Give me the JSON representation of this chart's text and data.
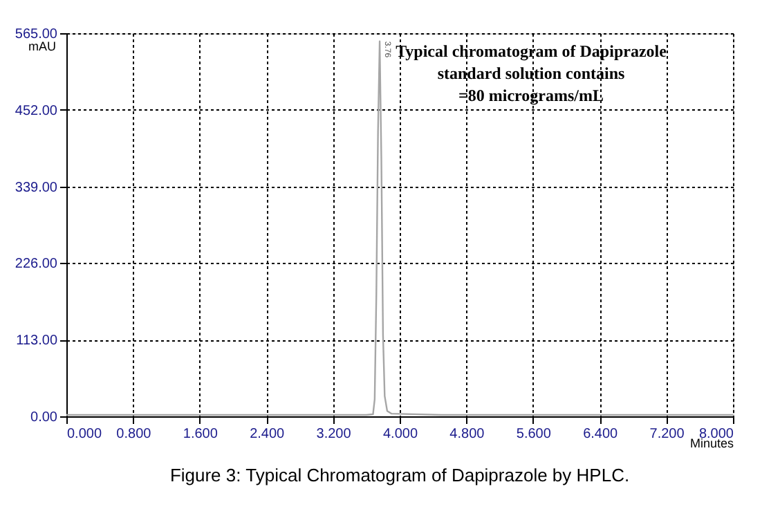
{
  "chart_data": {
    "type": "line",
    "x": [
      0,
      1.0,
      2.0,
      3.0,
      3.6,
      3.68,
      3.7,
      3.72,
      3.74,
      3.76,
      3.78,
      3.8,
      3.82,
      3.85,
      3.9,
      4.5,
      6.0,
      8.0
    ],
    "series": [
      {
        "color": "#a6a6a6",
        "values": [
          2,
          2,
          2,
          2,
          2,
          3,
          25,
          180,
          420,
          553,
          380,
          120,
          30,
          8,
          4,
          2,
          2,
          2
        ]
      }
    ],
    "xlim": [
      0,
      8
    ],
    "ylim": [
      0,
      565
    ],
    "xticks": [
      {
        "value": 0,
        "label": "0.000"
      },
      {
        "value": 0.8,
        "label": "0.800"
      },
      {
        "value": 1.6,
        "label": "1.600"
      },
      {
        "value": 2.4,
        "label": "2.400"
      },
      {
        "value": 3.2,
        "label": "3.200"
      },
      {
        "value": 4.0,
        "label": "4.000"
      },
      {
        "value": 4.8,
        "label": "4.800"
      },
      {
        "value": 5.6,
        "label": "5.600"
      },
      {
        "value": 6.4,
        "label": "6.400"
      },
      {
        "value": 7.2,
        "label": "7.200"
      },
      {
        "value": 8.0,
        "label": "8.000"
      }
    ],
    "yticks": [
      {
        "value": 0,
        "label": "0.00"
      },
      {
        "value": 113,
        "label": "113.00"
      },
      {
        "value": 226,
        "label": "226.00"
      },
      {
        "value": 339,
        "label": "339.00"
      },
      {
        "value": 452,
        "label": "452.00"
      },
      {
        "value": 565,
        "label": "565.00"
      }
    ],
    "xlabel": "Minutes",
    "ylabel": "mAU",
    "grid": true,
    "marker": "none",
    "line_style": "solid",
    "annotations": [
      {
        "text": "3.76",
        "x": 3.76,
        "y": 553
      },
      "Typical chromatogram of Dapiprazole\nstandard solution contains\n=80 micrograms/mL",
      "Figure 3: Typical Chromatogram of Dapiprazole by HPLC."
    ]
  }
}
